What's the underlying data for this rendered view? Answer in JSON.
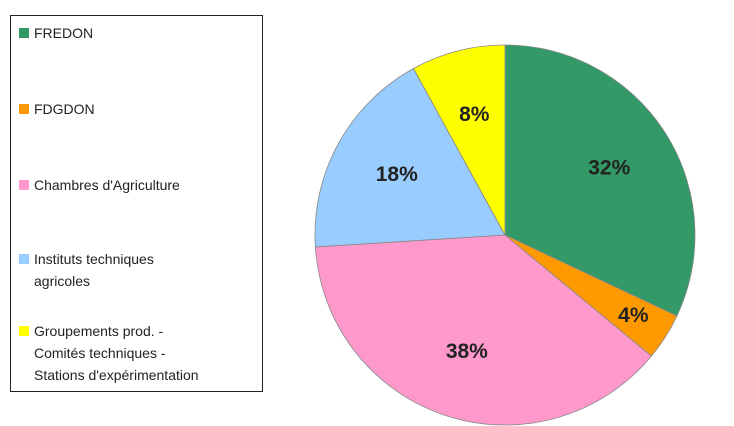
{
  "chart_data": {
    "type": "pie",
    "categories": [
      "FREDON",
      "FDGDON",
      "Chambres d'Agriculture",
      "Instituts techniques\nagricoles",
      "Groupements prod. -\nComités techniques -\nStations d'expérimentation"
    ],
    "values": [
      32,
      4,
      38,
      18,
      8
    ],
    "value_labels": [
      "32%",
      "4%",
      "38%",
      "18%",
      "8%"
    ],
    "colors": [
      "#339966",
      "#ff9900",
      "#ff99cc",
      "#99ccff",
      "#ffff00"
    ],
    "legend": "left"
  }
}
